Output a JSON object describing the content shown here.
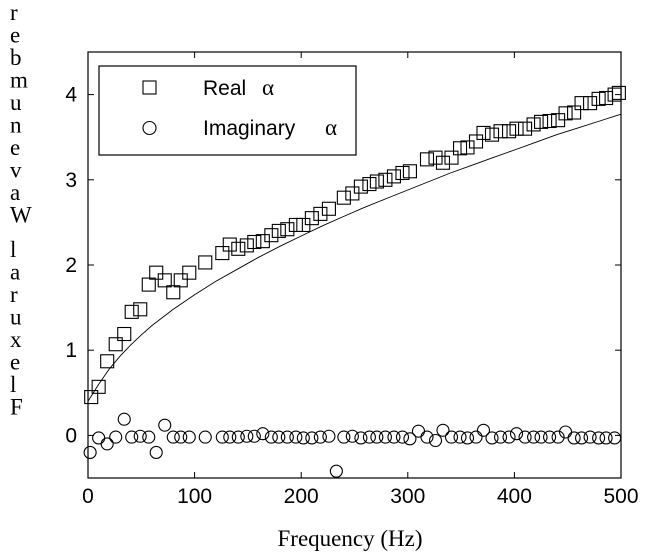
{
  "chart_data": {
    "type": "scatter",
    "xlabel": "Frequency (Hz)",
    "ylabel": "Flexural Wavenumber",
    "xlim": [
      0,
      500
    ],
    "ylim": [
      -0.5,
      4.5
    ],
    "x_ticks": [
      "0",
      "100",
      "200",
      "300",
      "400",
      "500"
    ],
    "y_ticks": [
      "0",
      "1",
      "2",
      "3",
      "4"
    ],
    "grid": false,
    "legend_position": "top-left",
    "series": [
      {
        "name": "Real α",
        "marker": "square",
        "x": [
          3,
          10,
          18,
          26,
          34,
          41,
          49,
          57,
          64,
          72,
          80,
          87,
          95,
          110,
          126,
          133,
          141,
          149,
          156,
          164,
          172,
          179,
          187,
          195,
          202,
          210,
          218,
          226,
          240,
          248,
          256,
          264,
          271,
          279,
          287,
          295,
          302,
          318,
          326,
          333,
          341,
          349,
          356,
          364,
          371,
          379,
          387,
          395,
          402,
          410,
          418,
          425,
          433,
          441,
          448,
          456,
          463,
          471,
          479,
          486,
          494,
          498
        ],
        "y": [
          0.45,
          0.57,
          0.87,
          1.07,
          1.19,
          1.45,
          1.48,
          1.77,
          1.91,
          1.82,
          1.68,
          1.82,
          1.91,
          2.03,
          2.14,
          2.24,
          2.19,
          2.23,
          2.27,
          2.28,
          2.35,
          2.4,
          2.42,
          2.47,
          2.47,
          2.55,
          2.6,
          2.66,
          2.79,
          2.84,
          2.92,
          2.95,
          2.98,
          3.0,
          3.04,
          3.08,
          3.1,
          3.24,
          3.26,
          3.2,
          3.26,
          3.37,
          3.38,
          3.45,
          3.55,
          3.53,
          3.57,
          3.57,
          3.6,
          3.6,
          3.65,
          3.68,
          3.69,
          3.7,
          3.78,
          3.79,
          3.9,
          3.9,
          3.95,
          3.96,
          4.0,
          4.02
        ]
      },
      {
        "name": "Imaginary α",
        "marker": "circle",
        "x": [
          2,
          10,
          18,
          26,
          34,
          41,
          49,
          57,
          64,
          72,
          80,
          87,
          95,
          110,
          126,
          133,
          141,
          149,
          156,
          164,
          172,
          179,
          187,
          195,
          202,
          210,
          218,
          226,
          233,
          240,
          248,
          256,
          264,
          271,
          279,
          287,
          295,
          302,
          310,
          318,
          326,
          333,
          341,
          349,
          356,
          364,
          371,
          379,
          387,
          395,
          402,
          410,
          418,
          425,
          433,
          441,
          448,
          456,
          463,
          471,
          479,
          486,
          494
        ],
        "y": [
          -0.2,
          -0.03,
          -0.1,
          -0.02,
          0.19,
          -0.02,
          -0.01,
          -0.02,
          -0.2,
          0.12,
          -0.02,
          -0.02,
          -0.02,
          -0.02,
          -0.02,
          -0.02,
          -0.02,
          -0.01,
          -0.01,
          0.02,
          -0.02,
          -0.02,
          -0.02,
          -0.02,
          -0.03,
          -0.03,
          -0.02,
          -0.01,
          -0.42,
          -0.02,
          -0.01,
          -0.03,
          -0.02,
          -0.02,
          -0.02,
          -0.02,
          -0.02,
          -0.04,
          0.05,
          -0.02,
          -0.06,
          0.06,
          -0.02,
          -0.02,
          -0.03,
          -0.02,
          0.06,
          -0.03,
          -0.02,
          -0.02,
          0.02,
          -0.02,
          -0.02,
          -0.02,
          -0.02,
          -0.02,
          0.04,
          -0.03,
          -0.03,
          -0.02,
          -0.03,
          -0.03,
          -0.03
        ]
      }
    ],
    "fit_curve": {
      "x": [
        0,
        10,
        20,
        30,
        40,
        50,
        60,
        80,
        100,
        120,
        140,
        160,
        180,
        200,
        220,
        240,
        260,
        280,
        300,
        320,
        340,
        360,
        380,
        400,
        420,
        440,
        460,
        480,
        500
      ],
      "y": [
        0.4,
        0.6,
        0.78,
        0.93,
        1.06,
        1.18,
        1.29,
        1.48,
        1.65,
        1.81,
        1.95,
        2.09,
        2.22,
        2.34,
        2.46,
        2.57,
        2.68,
        2.78,
        2.88,
        2.98,
        3.08,
        3.17,
        3.26,
        3.35,
        3.44,
        3.53,
        3.61,
        3.69,
        3.77
      ]
    },
    "legend": {
      "real_label": "Real",
      "imag_label": "Imaginary",
      "symbol": "α"
    }
  }
}
